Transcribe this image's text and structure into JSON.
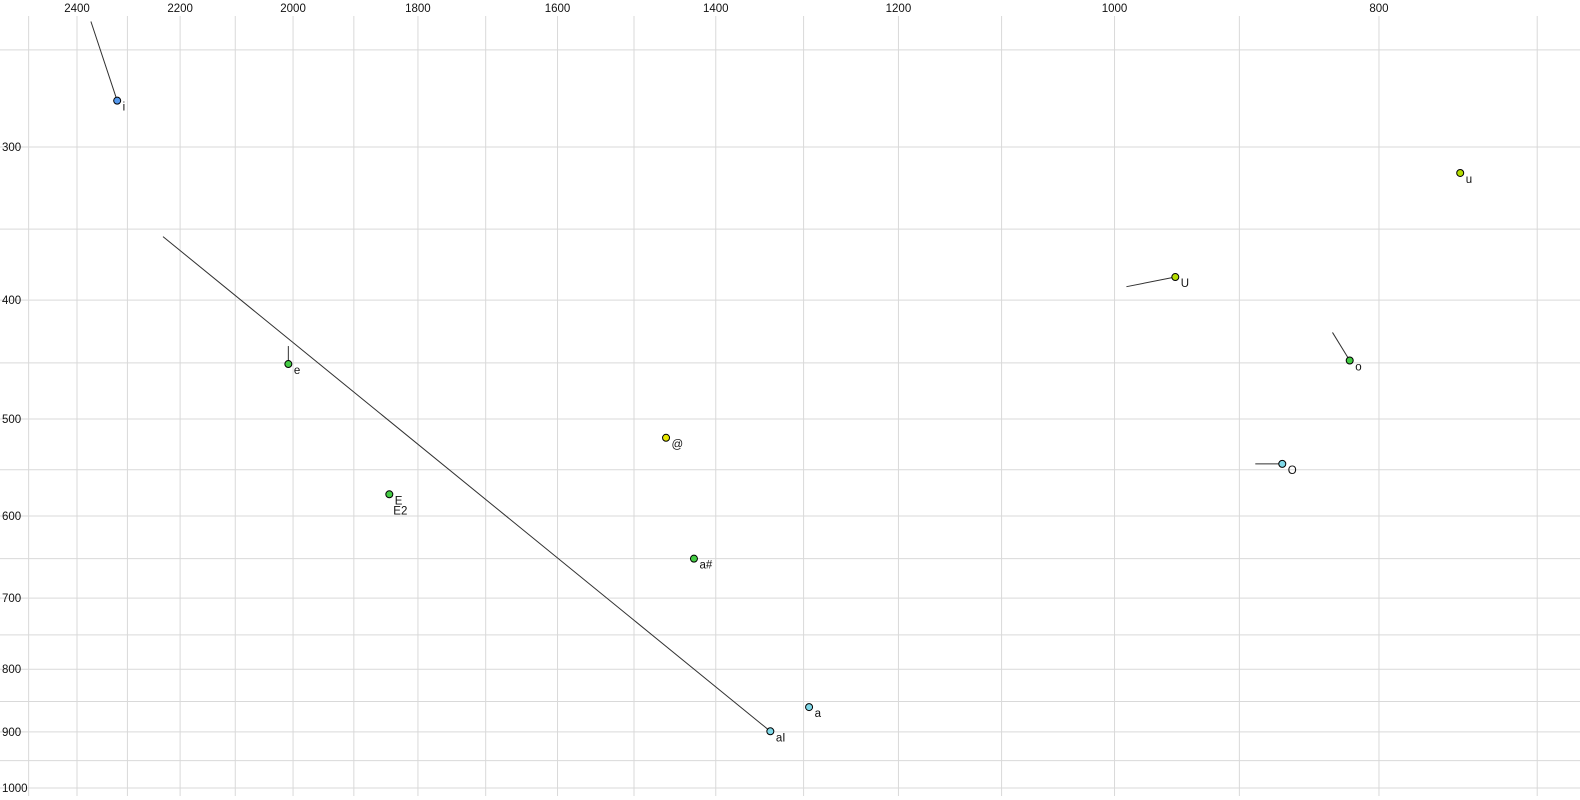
{
  "chart_data": {
    "type": "scatter",
    "title": "",
    "xlabel": "",
    "ylabel": "",
    "description": "Vowel formant plot: F2 (Hz, log scale, reversed) across top axis, F1 (Hz, log scale) down left axis",
    "x_axis": {
      "scale": "log",
      "reversed": true,
      "tick_values": [
        2400,
        2200,
        2000,
        1800,
        1600,
        1400,
        1200,
        1000,
        800
      ],
      "grid_min": 700,
      "grid_max": 2500,
      "grid_step": 100
    },
    "y_axis": {
      "scale": "log",
      "tick_values": [
        300,
        400,
        500,
        600,
        700,
        800,
        900,
        1000
      ],
      "grid_min": 250,
      "grid_max": 1000,
      "grid_step": 50
    },
    "grid": true,
    "legend": false,
    "colors": {
      "background": "#ffffff",
      "gridline": "#d9d9d9",
      "point_stroke": "#000000",
      "trajectory": "#303030",
      "blue": "#5599ee",
      "cyan": "#7fd8e8",
      "green": "#44cc44",
      "yellowgreen": "#b4dc00",
      "yellow": "#e6e600"
    },
    "points": [
      {
        "label": "i",
        "f2": 2320,
        "f1": 275,
        "color": "#5599ee",
        "tail": {
          "f2": 2372,
          "f1": 237
        }
      },
      {
        "label": "u",
        "f2": 747,
        "f1": 315,
        "color": "#b4dc00"
      },
      {
        "label": "U",
        "f2": 950,
        "f1": 383,
        "color": "#b4dc00",
        "tail": {
          "f2": 990,
          "f1": 390
        }
      },
      {
        "label": "o",
        "f2": 820,
        "f1": 448,
        "color": "#44cc44",
        "tail": {
          "f2": 832,
          "f1": 425
        }
      },
      {
        "label": "O",
        "f2": 868,
        "f1": 544,
        "color": "#7fd8e8",
        "tail": {
          "f2": 888,
          "f1": 544
        }
      },
      {
        "label": "e",
        "f2": 2008,
        "f1": 451,
        "color": "#44cc44",
        "tail": {
          "f2": 2008,
          "f1": 436
        }
      },
      {
        "label": "E",
        "f2": 1844,
        "f1": 576,
        "color": "#44cc44",
        "label2": "E2"
      },
      {
        "label": "@",
        "f2": 1460,
        "f1": 518,
        "color": "#e6e600"
      },
      {
        "label": "a#",
        "f2": 1426,
        "f1": 650,
        "color": "#44cc44"
      },
      {
        "label": "a",
        "f2": 1294,
        "f1": 859,
        "color": "#7fd8e8"
      },
      {
        "label": "aI",
        "f2": 1337,
        "f1": 899,
        "color": "#7fd8e8",
        "tail": {
          "f2": 2232,
          "f1": 355
        }
      }
    ]
  }
}
